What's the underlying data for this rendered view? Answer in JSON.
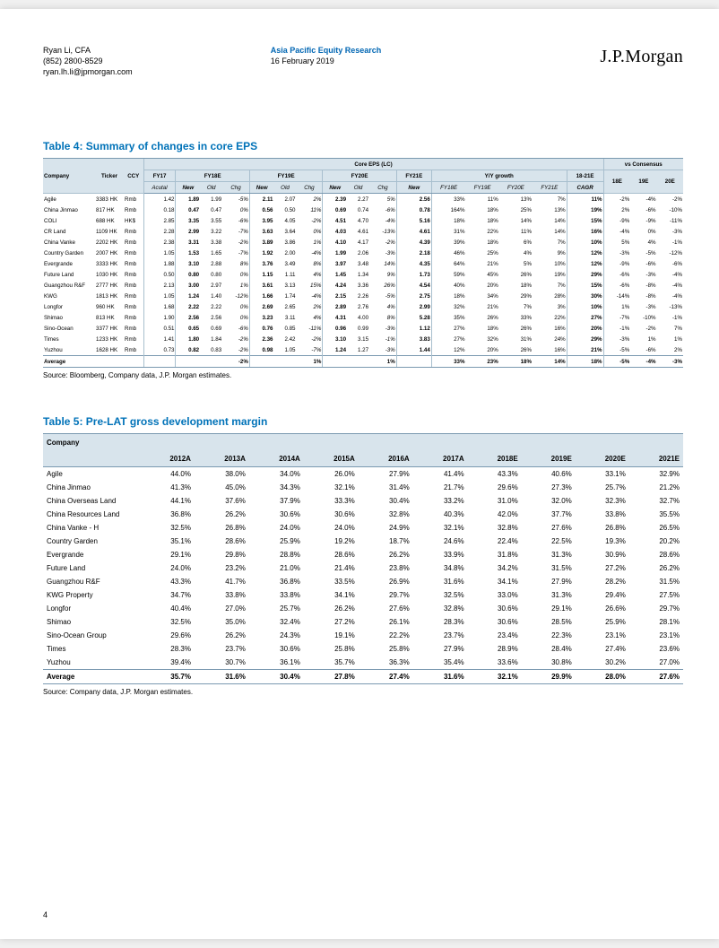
{
  "header": {
    "author_name": "Ryan Li, CFA",
    "author_phone": "(852) 2800-8529",
    "author_email": "ryan.lh.li@jpmorgan.com",
    "dept_title": "Asia Pacific Equity Research",
    "report_date": "16 February 2019",
    "logo_text": "J.P.Morgan"
  },
  "table4": {
    "caption": "Table 4: Summary of changes in core EPS",
    "super_header": "Core EPS (LC)",
    "vs_header": "vs Consensus",
    "col_groups": [
      "FY17",
      "FY18E",
      "FY19E",
      "FY20E",
      "FY21E",
      "Y/Y growth",
      "18-21E"
    ],
    "leaf_cols": [
      "Company",
      "Ticker",
      "CCY",
      "Acutal",
      "New",
      "Old",
      "Chg",
      "New",
      "Old",
      "Chg",
      "New",
      "Old",
      "Chg",
      "New",
      "FY18E",
      "FY19E",
      "FY20E",
      "FY21E",
      "CAGR",
      "18E",
      "19E",
      "20E"
    ],
    "rows": [
      {
        "c": "Agile",
        "t": "3383 HK",
        "ccy": "Rmb",
        "fy17": "1.42",
        "f18n": "1.89",
        "f18o": "1.99",
        "f18c": "-5%",
        "f19n": "2.11",
        "f19o": "2.07",
        "f19c": "2%",
        "f20n": "2.39",
        "f20o": "2.27",
        "f20c": "5%",
        "f21n": "2.56",
        "g18": "33%",
        "g19": "11%",
        "g20": "13%",
        "g21": "7%",
        "cagr": "11%",
        "v18": "-2%",
        "v19": "-4%",
        "v20": "-2%"
      },
      {
        "c": "China Jinmao",
        "t": "817 HK",
        "ccy": "Rmb",
        "fy17": "0.18",
        "f18n": "0.47",
        "f18o": "0.47",
        "f18c": "0%",
        "f19n": "0.56",
        "f19o": "0.50",
        "f19c": "11%",
        "f20n": "0.69",
        "f20o": "0.74",
        "f20c": "-6%",
        "f21n": "0.78",
        "g18": "164%",
        "g19": "18%",
        "g20": "25%",
        "g21": "13%",
        "cagr": "19%",
        "v18": "2%",
        "v19": "-6%",
        "v20": "-10%"
      },
      {
        "c": "COLI",
        "t": "688 HK",
        "ccy": "HK$",
        "fy17": "2.85",
        "f18n": "3.35",
        "f18o": "3.55",
        "f18c": "-6%",
        "f19n": "3.95",
        "f19o": "4.05",
        "f19c": "-2%",
        "f20n": "4.51",
        "f20o": "4.70",
        "f20c": "-4%",
        "f21n": "5.16",
        "g18": "18%",
        "g19": "18%",
        "g20": "14%",
        "g21": "14%",
        "cagr": "15%",
        "v18": "-9%",
        "v19": "-9%",
        "v20": "-11%"
      },
      {
        "c": "CR Land",
        "t": "1109 HK",
        "ccy": "Rmb",
        "fy17": "2.28",
        "f18n": "2.99",
        "f18o": "3.22",
        "f18c": "-7%",
        "f19n": "3.63",
        "f19o": "3.64",
        "f19c": "0%",
        "f20n": "4.03",
        "f20o": "4.61",
        "f20c": "-13%",
        "f21n": "4.61",
        "g18": "31%",
        "g19": "22%",
        "g20": "11%",
        "g21": "14%",
        "cagr": "16%",
        "v18": "-4%",
        "v19": "0%",
        "v20": "-3%"
      },
      {
        "c": "China Vanke",
        "t": "2202 HK",
        "ccy": "Rmb",
        "fy17": "2.38",
        "f18n": "3.31",
        "f18o": "3.38",
        "f18c": "-2%",
        "f19n": "3.89",
        "f19o": "3.86",
        "f19c": "1%",
        "f20n": "4.10",
        "f20o": "4.17",
        "f20c": "-2%",
        "f21n": "4.39",
        "g18": "39%",
        "g19": "18%",
        "g20": "6%",
        "g21": "7%",
        "cagr": "10%",
        "v18": "5%",
        "v19": "4%",
        "v20": "-1%"
      },
      {
        "c": "Country Garden",
        "t": "2007 HK",
        "ccy": "Rmb",
        "fy17": "1.05",
        "f18n": "1.53",
        "f18o": "1.65",
        "f18c": "-7%",
        "f19n": "1.92",
        "f19o": "2.00",
        "f19c": "-4%",
        "f20n": "1.99",
        "f20o": "2.06",
        "f20c": "-3%",
        "f21n": "2.18",
        "g18": "46%",
        "g19": "25%",
        "g20": "4%",
        "g21": "9%",
        "cagr": "12%",
        "v18": "-3%",
        "v19": "-5%",
        "v20": "-12%"
      },
      {
        "c": "Evergrande",
        "t": "3333 HK",
        "ccy": "Rmb",
        "fy17": "1.88",
        "f18n": "3.10",
        "f18o": "2.88",
        "f18c": "8%",
        "f19n": "3.76",
        "f19o": "3.49",
        "f19c": "8%",
        "f20n": "3.97",
        "f20o": "3.48",
        "f20c": "14%",
        "f21n": "4.35",
        "g18": "64%",
        "g19": "21%",
        "g20": "5%",
        "g21": "10%",
        "cagr": "12%",
        "v18": "-9%",
        "v19": "-6%",
        "v20": "-6%"
      },
      {
        "c": "Future Land",
        "t": "1030 HK",
        "ccy": "Rmb",
        "fy17": "0.50",
        "f18n": "0.80",
        "f18o": "0.80",
        "f18c": "0%",
        "f19n": "1.15",
        "f19o": "1.11",
        "f19c": "4%",
        "f20n": "1.45",
        "f20o": "1.34",
        "f20c": "9%",
        "f21n": "1.73",
        "g18": "59%",
        "g19": "45%",
        "g20": "26%",
        "g21": "19%",
        "cagr": "29%",
        "v18": "-6%",
        "v19": "-3%",
        "v20": "-4%"
      },
      {
        "c": "Guangzhou R&F",
        "t": "2777 HK",
        "ccy": "Rmb",
        "fy17": "2.13",
        "f18n": "3.00",
        "f18o": "2.97",
        "f18c": "1%",
        "f19n": "3.61",
        "f19o": "3.13",
        "f19c": "15%",
        "f20n": "4.24",
        "f20o": "3.36",
        "f20c": "26%",
        "f21n": "4.54",
        "g18": "40%",
        "g19": "20%",
        "g20": "18%",
        "g21": "7%",
        "cagr": "15%",
        "v18": "-6%",
        "v19": "-8%",
        "v20": "-4%"
      },
      {
        "c": "KWG",
        "t": "1813 HK",
        "ccy": "Rmb",
        "fy17": "1.05",
        "f18n": "1.24",
        "f18o": "1.40",
        "f18c": "-12%",
        "f19n": "1.66",
        "f19o": "1.74",
        "f19c": "-4%",
        "f20n": "2.15",
        "f20o": "2.26",
        "f20c": "-5%",
        "f21n": "2.75",
        "g18": "18%",
        "g19": "34%",
        "g20": "29%",
        "g21": "28%",
        "cagr": "30%",
        "v18": "-14%",
        "v19": "-8%",
        "v20": "-4%"
      },
      {
        "c": "Longfor",
        "t": "960 HK",
        "ccy": "Rmb",
        "fy17": "1.68",
        "f18n": "2.22",
        "f18o": "2.22",
        "f18c": "0%",
        "f19n": "2.69",
        "f19o": "2.65",
        "f19c": "2%",
        "f20n": "2.89",
        "f20o": "2.76",
        "f20c": "4%",
        "f21n": "2.99",
        "g18": "32%",
        "g19": "21%",
        "g20": "7%",
        "g21": "3%",
        "cagr": "10%",
        "v18": "1%",
        "v19": "-3%",
        "v20": "-13%"
      },
      {
        "c": "Shimao",
        "t": "813 HK",
        "ccy": "Rmb",
        "fy17": "1.90",
        "f18n": "2.56",
        "f18o": "2.56",
        "f18c": "0%",
        "f19n": "3.23",
        "f19o": "3.11",
        "f19c": "4%",
        "f20n": "4.31",
        "f20o": "4.00",
        "f20c": "8%",
        "f21n": "5.28",
        "g18": "35%",
        "g19": "26%",
        "g20": "33%",
        "g21": "22%",
        "cagr": "27%",
        "v18": "-7%",
        "v19": "-10%",
        "v20": "-1%"
      },
      {
        "c": "Sino-Ocean",
        "t": "3377 HK",
        "ccy": "Rmb",
        "fy17": "0.51",
        "f18n": "0.65",
        "f18o": "0.69",
        "f18c": "-6%",
        "f19n": "0.76",
        "f19o": "0.85",
        "f19c": "-11%",
        "f20n": "0.96",
        "f20o": "0.99",
        "f20c": "-3%",
        "f21n": "1.12",
        "g18": "27%",
        "g19": "18%",
        "g20": "26%",
        "g21": "16%",
        "cagr": "20%",
        "v18": "-1%",
        "v19": "-2%",
        "v20": "7%"
      },
      {
        "c": "Times",
        "t": "1233 HK",
        "ccy": "Rmb",
        "fy17": "1.41",
        "f18n": "1.80",
        "f18o": "1.84",
        "f18c": "-2%",
        "f19n": "2.36",
        "f19o": "2.42",
        "f19c": "-2%",
        "f20n": "3.10",
        "f20o": "3.15",
        "f20c": "-1%",
        "f21n": "3.83",
        "g18": "27%",
        "g19": "32%",
        "g20": "31%",
        "g21": "24%",
        "cagr": "29%",
        "v18": "-3%",
        "v19": "1%",
        "v20": "1%"
      },
      {
        "c": "Yuzhou",
        "t": "1628 HK",
        "ccy": "Rmb",
        "fy17": "0.73",
        "f18n": "0.82",
        "f18o": "0.83",
        "f18c": "-2%",
        "f19n": "0.98",
        "f19o": "1.05",
        "f19c": "-7%",
        "f20n": "1.24",
        "f20o": "1.27",
        "f20c": "-3%",
        "f21n": "1.44",
        "g18": "12%",
        "g19": "20%",
        "g20": "26%",
        "g21": "16%",
        "cagr": "21%",
        "v18": "-5%",
        "v19": "-6%",
        "v20": "2%"
      }
    ],
    "average": {
      "c": "Average",
      "f18c": "-2%",
      "f19c": "1%",
      "f20c": "1%",
      "g18": "33%",
      "g19": "23%",
      "g20": "18%",
      "g21": "14%",
      "cagr": "18%",
      "v18": "-5%",
      "v19": "-4%",
      "v20": "-3%"
    },
    "source": "Source: Bloomberg, Company data, J.P. Morgan estimates."
  },
  "table5": {
    "caption": "Table 5: Pre-LAT gross development margin",
    "cols": [
      "Company",
      "2012A",
      "2013A",
      "2014A",
      "2015A",
      "2016A",
      "2017A",
      "2018E",
      "2019E",
      "2020E",
      "2021E"
    ],
    "rows": [
      [
        "Agile",
        "44.0%",
        "38.0%",
        "34.0%",
        "26.0%",
        "27.9%",
        "41.4%",
        "43.3%",
        "40.6%",
        "33.1%",
        "32.9%"
      ],
      [
        "China Jinmao",
        "41.3%",
        "45.0%",
        "34.3%",
        "32.1%",
        "31.4%",
        "21.7%",
        "29.6%",
        "27.3%",
        "25.7%",
        "21.2%"
      ],
      [
        "China Overseas Land",
        "44.1%",
        "37.6%",
        "37.9%",
        "33.3%",
        "30.4%",
        "33.2%",
        "31.0%",
        "32.0%",
        "32.3%",
        "32.7%"
      ],
      [
        "China Resources Land",
        "36.8%",
        "26.2%",
        "30.6%",
        "30.6%",
        "32.8%",
        "40.3%",
        "42.0%",
        "37.7%",
        "33.8%",
        "35.5%"
      ],
      [
        "China Vanke - H",
        "32.5%",
        "26.8%",
        "24.0%",
        "24.0%",
        "24.9%",
        "32.1%",
        "32.8%",
        "27.6%",
        "26.8%",
        "26.5%"
      ],
      [
        "Country Garden",
        "35.1%",
        "28.6%",
        "25.9%",
        "19.2%",
        "18.7%",
        "24.6%",
        "22.4%",
        "22.5%",
        "19.3%",
        "20.2%"
      ],
      [
        "Evergrande",
        "29.1%",
        "29.8%",
        "28.8%",
        "28.6%",
        "26.2%",
        "33.9%",
        "31.8%",
        "31.3%",
        "30.9%",
        "28.6%"
      ],
      [
        "Future Land",
        "24.0%",
        "23.2%",
        "21.0%",
        "21.4%",
        "23.8%",
        "34.8%",
        "34.2%",
        "31.5%",
        "27.2%",
        "26.2%"
      ],
      [
        "Guangzhou R&F",
        "43.3%",
        "41.7%",
        "36.8%",
        "33.5%",
        "26.9%",
        "31.6%",
        "34.1%",
        "27.9%",
        "28.2%",
        "31.5%"
      ],
      [
        "KWG Property",
        "34.7%",
        "33.8%",
        "33.8%",
        "34.1%",
        "29.7%",
        "32.5%",
        "33.0%",
        "31.3%",
        "29.4%",
        "27.5%"
      ],
      [
        "Longfor",
        "40.4%",
        "27.0%",
        "25.7%",
        "26.2%",
        "27.6%",
        "32.8%",
        "30.6%",
        "29.1%",
        "26.6%",
        "29.7%"
      ],
      [
        "Shimao",
        "32.5%",
        "35.0%",
        "32.4%",
        "27.2%",
        "26.1%",
        "28.3%",
        "30.6%",
        "28.5%",
        "25.9%",
        "28.1%"
      ],
      [
        "Sino-Ocean Group",
        "29.6%",
        "26.2%",
        "24.3%",
        "19.1%",
        "22.2%",
        "23.7%",
        "23.4%",
        "22.3%",
        "23.1%",
        "23.1%"
      ],
      [
        "Times",
        "28.3%",
        "23.7%",
        "30.6%",
        "25.8%",
        "25.8%",
        "27.9%",
        "28.9%",
        "28.4%",
        "27.4%",
        "23.6%"
      ],
      [
        "Yuzhou",
        "39.4%",
        "30.7%",
        "36.1%",
        "35.7%",
        "36.3%",
        "35.4%",
        "33.6%",
        "30.8%",
        "30.2%",
        "27.0%"
      ]
    ],
    "average": [
      "Average",
      "35.7%",
      "31.6%",
      "30.4%",
      "27.8%",
      "27.4%",
      "31.6%",
      "32.1%",
      "29.9%",
      "28.0%",
      "27.6%"
    ],
    "source": "Source: Company data, J.P. Morgan estimates."
  },
  "page_number": "4"
}
